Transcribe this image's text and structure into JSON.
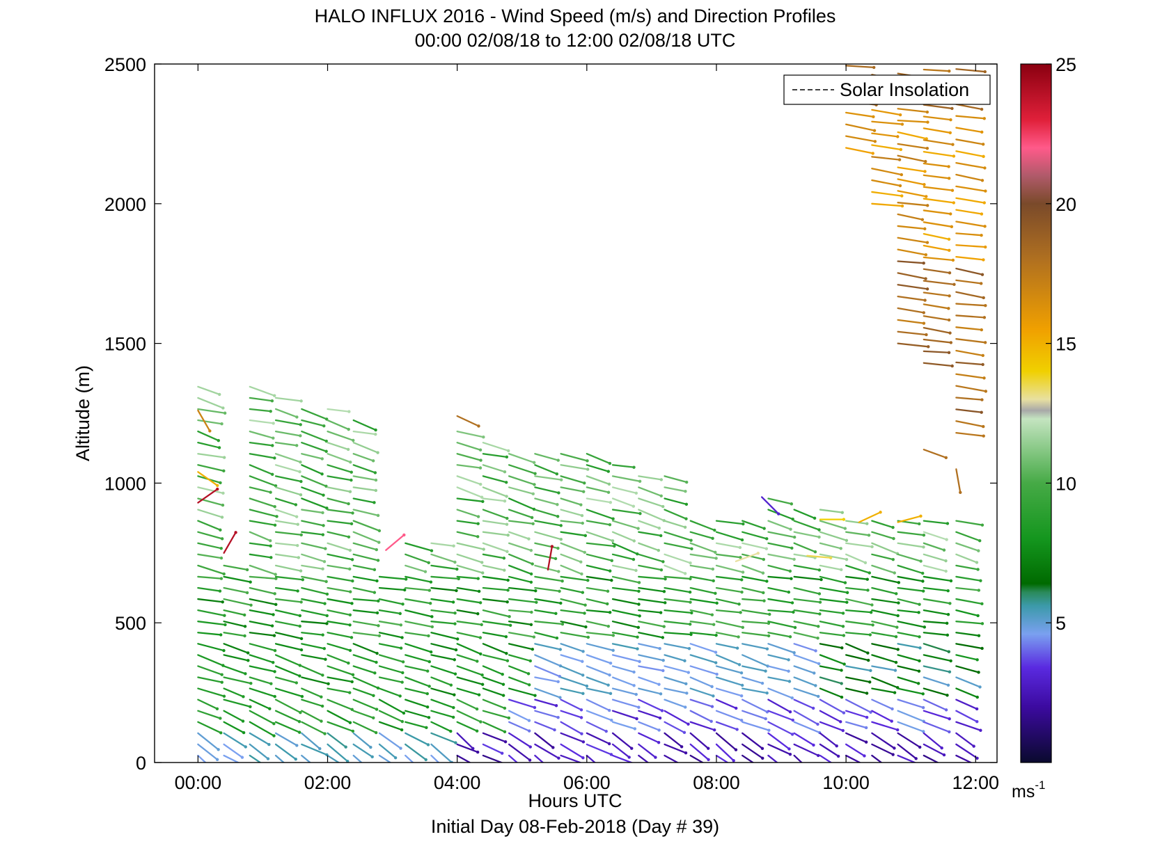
{
  "chart_data": {
    "type": "quiver",
    "title": "HALO INFLUX 2016 - Wind Speed (m/s) and Direction Profiles",
    "subtitle": "00:00 02/08/18 to 12:00 02/08/18  UTC",
    "xlabel": "Hours UTC",
    "xlabel2": "Initial Day 08-Feb-2018 (Day # 39)",
    "ylabel": "Altitude (m)",
    "xlim": [
      -0.67,
      12.33
    ],
    "ylim": [
      0,
      2500
    ],
    "x_ticks": [
      {
        "value": 0,
        "label": "00:00"
      },
      {
        "value": 2,
        "label": "02:00"
      },
      {
        "value": 4,
        "label": "04:00"
      },
      {
        "value": 6,
        "label": "06:00"
      },
      {
        "value": 8,
        "label": "08:00"
      },
      {
        "value": 10,
        "label": "10:00"
      },
      {
        "value": 12,
        "label": "12:00"
      }
    ],
    "y_ticks": [
      {
        "value": 0,
        "label": "0"
      },
      {
        "value": 500,
        "label": "500"
      },
      {
        "value": 1000,
        "label": "1000"
      },
      {
        "value": 1500,
        "label": "1500"
      },
      {
        "value": 2000,
        "label": "2000"
      },
      {
        "value": 2500,
        "label": "2500"
      }
    ],
    "legend": {
      "label": "Solar Insolation",
      "position": "top-right",
      "line_style": "dashed"
    },
    "colorbar": {
      "range": [
        0,
        25
      ],
      "ticks": [
        {
          "value": 5,
          "label": "5"
        },
        {
          "value": 10,
          "label": "10"
        },
        {
          "value": 15,
          "label": "15"
        },
        {
          "value": 20,
          "label": "20"
        },
        {
          "value": 25,
          "label": "25"
        }
      ],
      "unit_base": "ms",
      "unit_exp": "-1",
      "stops": [
        {
          "v": 0,
          "c": "#0a0a2e"
        },
        {
          "v": 2,
          "c": "#3c0aa0"
        },
        {
          "v": 3.4,
          "c": "#5a2ae0"
        },
        {
          "v": 4.6,
          "c": "#7aa0f0"
        },
        {
          "v": 5.6,
          "c": "#3c9aaa"
        },
        {
          "v": 6.1,
          "c": "#2a8a5a"
        },
        {
          "v": 6.4,
          "c": "#006a00"
        },
        {
          "v": 8,
          "c": "#14961e"
        },
        {
          "v": 10,
          "c": "#46aa46"
        },
        {
          "v": 12.3,
          "c": "#c4e4c0"
        },
        {
          "v": 12.6,
          "c": "#a8a8a8"
        },
        {
          "v": 13,
          "c": "#e8e0a0"
        },
        {
          "v": 14,
          "c": "#f0d000"
        },
        {
          "v": 15.5,
          "c": "#f0a000"
        },
        {
          "v": 18,
          "c": "#b07020"
        },
        {
          "v": 20,
          "c": "#7a4a2a"
        },
        {
          "v": 21,
          "c": "#b05a6a"
        },
        {
          "v": 22,
          "c": "#ff5a8a"
        },
        {
          "v": 23,
          "c": "#e0203a"
        },
        {
          "v": 25,
          "c": "#8a0010"
        }
      ]
    },
    "wind_field": {
      "description": "approximate reconstruction of the wind barb field",
      "profiles": [
        {
          "t": 0.0,
          "top": 1360
        },
        {
          "t": 0.4,
          "top": 720
        },
        {
          "t": 0.8,
          "top": 1360
        },
        {
          "t": 1.2,
          "top": 1340
        },
        {
          "t": 1.6,
          "top": 1300
        },
        {
          "t": 2.0,
          "top": 1270
        },
        {
          "t": 2.4,
          "top": 1230
        },
        {
          "t": 2.8,
          "top": 700
        },
        {
          "t": 3.2,
          "top": 800
        },
        {
          "t": 3.6,
          "top": 800
        },
        {
          "t": 4.0,
          "top": 1200
        },
        {
          "t": 4.4,
          "top": 1180
        },
        {
          "t": 4.8,
          "top": 1130
        },
        {
          "t": 5.2,
          "top": 1120
        },
        {
          "t": 5.6,
          "top": 1110
        },
        {
          "t": 6.0,
          "top": 1110
        },
        {
          "t": 6.4,
          "top": 1100
        },
        {
          "t": 6.8,
          "top": 1060
        },
        {
          "t": 7.2,
          "top": 1030
        },
        {
          "t": 7.6,
          "top": 880
        },
        {
          "t": 8.0,
          "top": 880
        },
        {
          "t": 8.4,
          "top": 880
        },
        {
          "t": 8.8,
          "top": 960
        },
        {
          "t": 9.2,
          "top": 920
        },
        {
          "t": 9.6,
          "top": 930
        },
        {
          "t": 10.0,
          "top": 2500
        },
        {
          "t": 10.4,
          "top": 2500
        },
        {
          "t": 10.8,
          "top": 2500
        },
        {
          "t": 11.2,
          "top": 2500
        },
        {
          "t": 11.7,
          "top": 2500
        }
      ]
    }
  }
}
